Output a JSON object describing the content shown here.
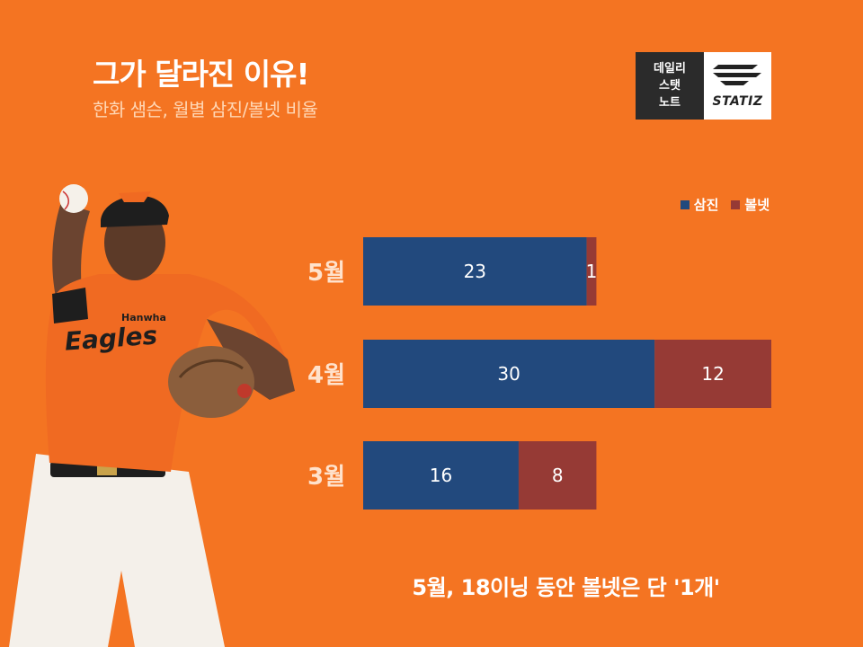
{
  "header": {
    "title": "그가 달라진 이유!",
    "subtitle": "한화 샘슨, 월별 삼진/볼넷 비율"
  },
  "logo": {
    "left_lines": [
      "데일리",
      "스탯",
      "노트"
    ],
    "brand": "STATIZ"
  },
  "colors": {
    "background": "#F47422",
    "strikeout": "#22497D",
    "walk": "#963A35"
  },
  "chart_data": {
    "type": "bar",
    "orientation": "horizontal",
    "stacked": true,
    "categories": [
      "5월",
      "4월",
      "3월"
    ],
    "series": [
      {
        "name": "삼진",
        "values": [
          23,
          30,
          16
        ]
      },
      {
        "name": "볼넷",
        "values": [
          1,
          12,
          8
        ]
      }
    ],
    "legend": "top-right",
    "grid": false,
    "xlim": [
      0,
      42
    ]
  },
  "footnote": "5월, 18이닝 동안 볼넷은 단 '1개'"
}
